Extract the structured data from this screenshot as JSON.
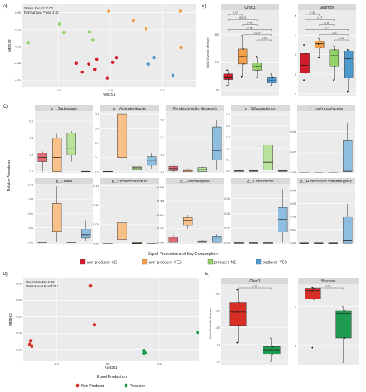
{
  "colors": {
    "non_producer_no": "#d01c2a",
    "non_producer_yes": "#f5a04a",
    "producer_no": "#94d466",
    "producer_yes": "#4f9bd0",
    "e_non_producer": "#d92e26",
    "e_producer": "#1e9a51",
    "panel_bg": "#ebebeb",
    "strip_bg": "#d9d9d9"
  },
  "legend_C": {
    "title": "Equol Production and Soy Consumption",
    "items": [
      "non−producer−NO",
      "non−producer−YES",
      "producer−NO",
      "producer−YES"
    ]
  },
  "legend_D": {
    "title": "Equol Production",
    "items": [
      "Non-Producer",
      "Producer"
    ]
  },
  "chart_data": [
    {
      "panel": "A)",
      "type": "scatter",
      "xlabel": "NMDS1",
      "ylabel": "NMDS2",
      "xlim": [
        -0.85,
        0.82
      ],
      "ylim": [
        -0.6,
        0.62
      ],
      "xticks": [
        "-0.5",
        "0.0",
        "0.5"
      ],
      "yticks": [
        "0.50",
        "0.25",
        "0.00",
        "-0.25",
        "-0.50"
      ],
      "xtick_values": [
        -0.5,
        0.0,
        0.5
      ],
      "ytick_values": [
        0.5,
        0.25,
        0.0,
        -0.25,
        -0.5
      ],
      "annotations": [
        "Stress Factor: 0.02",
        "Permanova P-val: 0.02"
      ],
      "series": [
        {
          "group": "non_producer_no",
          "points": [
            [
              -0.33,
              -0.25
            ],
            [
              -0.27,
              -0.38
            ],
            [
              -0.21,
              -0.26
            ],
            [
              -0.15,
              -0.34
            ],
            [
              -0.13,
              -0.19
            ],
            [
              -0.03,
              -0.47
            ],
            [
              0.02,
              -0.24
            ],
            [
              0.06,
              -0.17
            ]
          ]
        },
        {
          "group": "non_producer_yes",
          "points": [
            [
              -0.02,
              0.52
            ],
            [
              0.22,
              0.38
            ],
            [
              0.34,
              0.26
            ],
            [
              0.67,
              0.52
            ],
            [
              0.68,
              -0.02
            ]
          ]
        },
        {
          "group": "producer_no",
          "points": [
            [
              -0.79,
              0.05
            ],
            [
              -0.49,
              0.33
            ],
            [
              -0.45,
              0.2
            ],
            [
              -0.2,
              0.21
            ],
            [
              -0.17,
              0.09
            ]
          ]
        },
        {
          "group": "producer_yes",
          "points": [
            [
              0.36,
              -0.26
            ],
            [
              0.42,
              -0.17
            ],
            [
              0.6,
              -0.43
            ]
          ]
        }
      ]
    },
    {
      "panel": "B)",
      "type": "box",
      "ylabel": "Alpha Diversity Measure",
      "facets": [
        {
          "title": "Chao1",
          "ylim": [
            40,
            195
          ],
          "yticks": [
            "50",
            "100",
            "150"
          ],
          "ytick_values": [
            50,
            100,
            150
          ],
          "boxes": [
            {
              "group": "non_producer_no",
              "min": 58,
              "q1": 69,
              "median": 73,
              "q3": 79,
              "max": 86
            },
            {
              "group": "non_producer_yes",
              "min": 74,
              "q1": 97,
              "median": 111,
              "q3": 124,
              "max": 148
            },
            {
              "group": "producer_no",
              "min": 72,
              "q1": 86,
              "median": 93,
              "q3": 99,
              "max": 110
            },
            {
              "group": "producer_yes",
              "min": 58,
              "q1": 63,
              "median": 67,
              "q3": 73,
              "max": 79
            }
          ],
          "comparisons": [
            "0.17",
            "0.019",
            "0.17",
            "0.34",
            "0.057",
            "0.23"
          ]
        },
        {
          "title": "Shannon",
          "ylim": [
            0.9,
            5.3
          ],
          "yticks": [
            "1",
            "2",
            "3",
            "4",
            "5"
          ],
          "ytick_values": [
            1,
            2,
            3,
            4,
            5
          ],
          "boxes": [
            {
              "group": "non_producer_no",
              "min": 1.7,
              "q1": 2.05,
              "median": 2.45,
              "q3": 3.05,
              "max": 3.5
            },
            {
              "group": "non_producer_yes",
              "min": 2.85,
              "q1": 3.35,
              "median": 3.55,
              "q3": 3.7,
              "max": 3.85
            },
            {
              "group": "producer_no",
              "min": 1.7,
              "q1": 2.4,
              "median": 2.95,
              "q3": 3.25,
              "max": 3.45
            },
            {
              "group": "producer_yes",
              "min": 1.1,
              "q1": 1.8,
              "median": 2.8,
              "q3": 3.2,
              "max": 3.25
            }
          ],
          "comparisons": [
            "0.76",
            "0.17",
            "0.71",
            "0.2",
            "0.29",
            "0.63"
          ]
        }
      ]
    },
    {
      "panel": "C)",
      "type": "box",
      "ylabel": "Relative Abundance",
      "facets": [
        {
          "title": "g__Bacteroides",
          "ylim": [
            -0.01,
            0.36
          ],
          "yticks": [
            "0.0",
            "0.1",
            "0.2",
            "0.3"
          ],
          "ytick_values": [
            0,
            0.1,
            0.2,
            0.3
          ],
          "boxes": [
            {
              "min": 0.0,
              "q1": 0.06,
              "median": 0.085,
              "q3": 0.11,
              "max": 0.12
            },
            {
              "min": 0.0,
              "q1": 0.0,
              "median": 0.085,
              "q3": 0.2,
              "max": 0.225
            },
            {
              "min": 0.06,
              "q1": 0.1,
              "median": 0.14,
              "q3": 0.23,
              "max": 0.24
            },
            {
              "min": 0.0,
              "q1": 0.0,
              "median": 0.001,
              "q3": 0.002,
              "max": 0.003
            }
          ]
        },
        {
          "title": "g__Fusicatenibacter",
          "ylim": [
            -0.01,
            0.42
          ],
          "yticks": [
            "0.0",
            "0.1",
            "0.2",
            "0.3",
            "0.4"
          ],
          "ytick_values": [
            0,
            0.1,
            0.2,
            0.3,
            0.4
          ],
          "boxes": [
            {
              "min": 0.0,
              "q1": 0.0,
              "median": 0.002,
              "q3": 0.003,
              "max": 0.004
            },
            {
              "min": 0.0,
              "q1": 0.1,
              "median": 0.22,
              "q3": 0.4,
              "max": 0.42
            },
            {
              "min": 0.0,
              "q1": 0.015,
              "median": 0.025,
              "q3": 0.035,
              "max": 0.045
            },
            {
              "min": 0.02,
              "q1": 0.045,
              "median": 0.08,
              "q3": 0.105,
              "max": 0.13
            }
          ]
        },
        {
          "title": "Parabacteroides distasonis",
          "ylim": [
            -0.01,
            0.7
          ],
          "yticks": [
            "0.0",
            "0.2",
            "0.4",
            "0.6"
          ],
          "ytick_values": [
            0,
            0.2,
            0.4,
            0.6
          ],
          "boxes": [
            {
              "min": 0.0,
              "q1": 0.02,
              "median": 0.04,
              "q3": 0.07,
              "max": 0.075
            },
            {
              "min": 0.0,
              "q1": 0.005,
              "median": 0.015,
              "q3": 0.03,
              "max": 0.04
            },
            {
              "min": 0.0,
              "q1": 0.01,
              "median": 0.03,
              "q3": 0.05,
              "max": 0.055
            },
            {
              "min": 0.03,
              "q1": 0.14,
              "median": 0.25,
              "q3": 0.52,
              "max": 0.6
            }
          ]
        },
        {
          "title": "g__Bifidobacterium",
          "ylim": [
            -0.02,
            0.53
          ],
          "yticks": [
            "0.0",
            "0.1",
            "0.2",
            "0.3",
            "0.4",
            "0.5"
          ],
          "ytick_values": [
            0,
            0.1,
            0.2,
            0.3,
            0.4,
            0.5
          ],
          "boxes": [
            {
              "min": 0.0,
              "q1": 0.0,
              "median": 0.001,
              "q3": 0.002,
              "max": 0.003
            },
            {
              "min": 0.0,
              "q1": 0.0,
              "median": 0.001,
              "q3": 0.002,
              "max": 0.003
            },
            {
              "min": 0.0,
              "q1": 0.01,
              "median": 0.08,
              "q3": 0.23,
              "max": 0.49
            },
            {
              "min": 0.0,
              "q1": 0.0,
              "median": 0.001,
              "q3": 0.002,
              "max": 0.003
            }
          ]
        },
        {
          "title": "f__Lachnospiraceae",
          "ylim": [
            -0.001,
            0.06
          ],
          "yticks": [
            "0.00",
            "0.02",
            "0.04"
          ],
          "ytick_values": [
            0,
            0.02,
            0.04
          ],
          "boxes": [
            {
              "min": 0.0,
              "q1": 0.0,
              "median": 0.0,
              "q3": 0.0002,
              "max": 0.0004
            },
            {
              "min": 0.0,
              "q1": 0.0,
              "median": 0.0,
              "q3": 0.0002,
              "max": 0.0004
            },
            {
              "min": 0.0,
              "q1": 0.0,
              "median": 0.0,
              "q3": 0.0002,
              "max": 0.0004
            },
            {
              "min": 0.0,
              "q1": 0.0,
              "median": 0.001,
              "q3": 0.031,
              "max": 0.049
            }
          ]
        },
        {
          "title": "g__Dorea",
          "ylim": [
            -0.003,
            0.081
          ],
          "yticks": [
            "0.00",
            "0.02",
            "0.04",
            "0.06",
            "0.08"
          ],
          "ytick_values": [
            0,
            0.02,
            0.04,
            0.06,
            0.08
          ],
          "boxes": [
            {
              "min": 0.0,
              "q1": 0.0,
              "median": 0.0001,
              "q3": 0.0003,
              "max": 0.0005
            },
            {
              "min": 0.0,
              "q1": 0.015,
              "median": 0.042,
              "q3": 0.054,
              "max": 0.078
            },
            {
              "min": 0.0,
              "q1": 0.0,
              "median": 0.0001,
              "q3": 0.0003,
              "max": 0.0005
            },
            {
              "min": 0.002,
              "q1": 0.006,
              "median": 0.01,
              "q3": 0.018,
              "max": 0.03
            }
          ]
        },
        {
          "title": "g__Lachnoclostridium",
          "ylim": [
            -0.002,
            0.155
          ],
          "yticks": [
            "0.00",
            "0.05",
            "0.10",
            "0.15"
          ],
          "ytick_values": [
            0,
            0.05,
            0.1,
            0.15
          ],
          "boxes": [
            {
              "min": 0.0,
              "q1": 0.0,
              "median": 0.0001,
              "q3": 0.0003,
              "max": 0.0005
            },
            {
              "min": 0.0,
              "q1": 0.01,
              "median": 0.025,
              "q3": 0.054,
              "max": 0.058
            },
            {
              "min": 0.0,
              "q1": 0.0,
              "median": 0.001,
              "q3": 0.003,
              "max": 0.004
            },
            {
              "min": 0.0,
              "q1": 0.0,
              "median": 0.0001,
              "q3": 0.0003,
              "max": 0.0005
            }
          ]
        },
        {
          "title": "g__Eisenbergiella",
          "ylim": [
            -0.0003,
            0.0085
          ],
          "yticks": [
            "0.000",
            "0.002",
            "0.004",
            "0.006",
            "0.008"
          ],
          "ytick_values": [
            0,
            0.002,
            0.004,
            0.006,
            0.008
          ],
          "boxes": [
            {
              "min": 0.0,
              "q1": 0.0,
              "median": 0.0005,
              "q3": 0.0008,
              "max": 0.001
            },
            {
              "min": 0.002,
              "q1": 0.0025,
              "median": 0.0032,
              "q3": 0.0036,
              "max": 0.004
            },
            {
              "min": 0.0,
              "q1": 0.0,
              "median": 0.0001,
              "q3": 0.0002,
              "max": 0.0003
            },
            {
              "min": 0.0,
              "q1": 0.0,
              "median": 0.0005,
              "q3": 0.0009,
              "max": 0.0012
            }
          ]
        },
        {
          "title": "g__Coprobacter",
          "ylim": [
            -0.002,
            0.08
          ],
          "yticks": [
            "0.00",
            "0.02",
            "0.04",
            "0.06"
          ],
          "ytick_values": [
            0,
            0.02,
            0.04,
            0.06
          ],
          "boxes": [
            {
              "min": 0.0,
              "q1": 0.0,
              "median": 0.0001,
              "q3": 0.0003,
              "max": 0.0005
            },
            {
              "min": 0.0,
              "q1": 0.0,
              "median": 0.0001,
              "q3": 0.0003,
              "max": 0.0005
            },
            {
              "min": 0.0,
              "q1": 0.0,
              "median": 0.0001,
              "q3": 0.0003,
              "max": 0.0005
            },
            {
              "min": 0.0,
              "q1": 0.015,
              "median": 0.032,
              "q3": 0.048,
              "max": 0.073
            }
          ]
        },
        {
          "title": "g__Eubacterium nodatum group",
          "ylim": [
            -0.001,
            0.045
          ],
          "yticks": [
            "0.00",
            "0.01",
            "0.02",
            "0.03",
            "0.04"
          ],
          "ytick_values": [
            0,
            0.01,
            0.02,
            0.03,
            0.04
          ],
          "boxes": [
            {
              "min": 0.0,
              "q1": 0.0,
              "median": 0.0,
              "q3": 0.0002,
              "max": 0.0004
            },
            {
              "min": 0.0,
              "q1": 0.0,
              "median": 0.0,
              "q3": 0.0002,
              "max": 0.0004
            },
            {
              "min": 0.0,
              "q1": 0.0,
              "median": 0.0,
              "q3": 0.0002,
              "max": 0.0004
            },
            {
              "min": 0.0,
              "q1": 0.0,
              "median": 0.002,
              "q3": 0.02,
              "max": 0.03
            }
          ]
        }
      ]
    },
    {
      "panel": "D)",
      "type": "scatter",
      "xlabel": "NMDS1",
      "ylabel": "NMDS2",
      "xlim": [
        -0.82,
        0.88
      ],
      "ylim": [
        -0.42,
        0.84
      ],
      "xticks": [
        "-0.5",
        "0.0",
        "0.5"
      ],
      "yticks": [
        "0.75",
        "0.50",
        "0.25",
        "0.00",
        "-0.25"
      ],
      "xtick_values": [
        -0.5,
        0.0,
        0.5
      ],
      "ytick_values": [
        0.75,
        0.5,
        0.25,
        0.0,
        -0.25
      ],
      "annotations": [
        "Stress Factor: 0.01",
        "Permanova P-val: 0.3"
      ],
      "series": [
        {
          "group": "e_non_producer",
          "points": [
            [
              -0.75,
              -0.12
            ],
            [
              -0.76,
              -0.17
            ],
            [
              -0.74,
              -0.2
            ],
            [
              -0.13,
              0.13
            ],
            [
              -0.17,
              0.72
            ]
          ]
        },
        {
          "group": "e_producer",
          "points": [
            [
              0.35,
              -0.27
            ],
            [
              0.36,
              -0.3
            ],
            [
              0.35,
              -0.31
            ],
            [
              0.87,
              0.01
            ]
          ]
        }
      ]
    },
    {
      "panel": "E)",
      "type": "box",
      "ylabel": "Alpha Diversity Measure",
      "facets": [
        {
          "title": "Chao1",
          "ylim": [
            45,
            165
          ],
          "yticks": [
            "50",
            "75",
            "100",
            "125",
            "150"
          ],
          "ytick_values": [
            50,
            75,
            100,
            125,
            150
          ],
          "boxes": [
            {
              "group": "e_non_producer",
              "min": 78,
              "q1": 103,
              "median": 123,
              "q3": 137,
              "max": 156
            },
            {
              "group": "e_producer",
              "min": 50,
              "q1": 61,
              "median": 67,
              "q3": 72,
              "max": 85
            }
          ],
          "comparisons": [
            "0.11"
          ]
        },
        {
          "title": "Shannon",
          "ylim": [
            1.5,
            3.6
          ],
          "yticks": [
            "2",
            "3"
          ],
          "ytick_values": [
            2,
            3
          ],
          "boxes": [
            {
              "group": "e_non_producer",
              "min": 1.95,
              "q1": 3.2,
              "median": 3.42,
              "q3": 3.48,
              "max": 3.5
            },
            {
              "group": "e_producer",
              "min": 1.55,
              "q1": 2.2,
              "median": 2.83,
              "q3": 2.9,
              "max": 3.0
            }
          ],
          "comparisons": [
            "0.23"
          ]
        }
      ]
    }
  ]
}
